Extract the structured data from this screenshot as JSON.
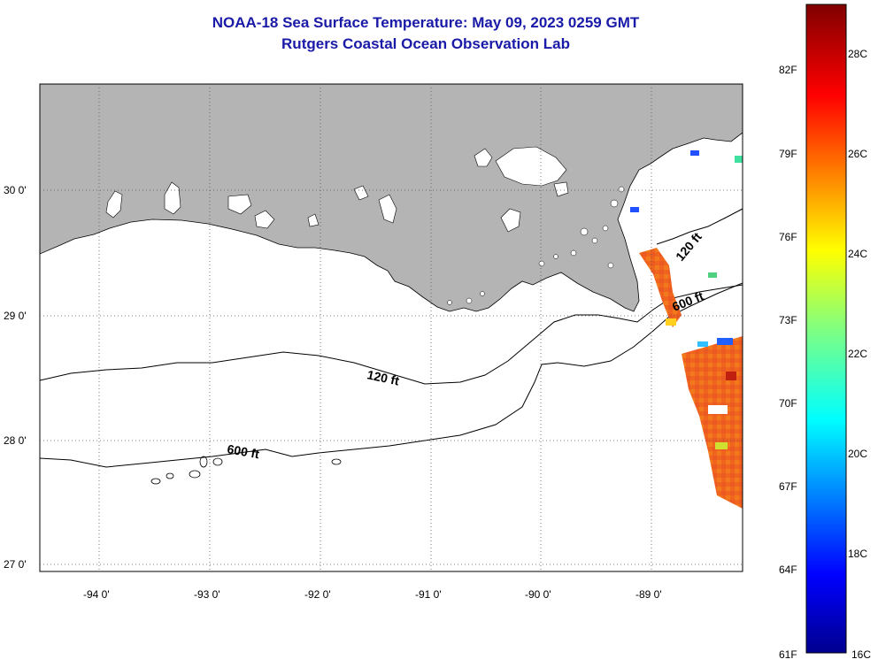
{
  "title_line1": "NOAA-18 Sea Surface Temperature:  May 09, 2023 0259 GMT",
  "title_line2": "Rutgers Coastal Ocean Observation Lab",
  "lat_labels": [
    "30 0'",
    "29 0'",
    "28 0'",
    "27 0'"
  ],
  "lon_labels": [
    "-94 0'",
    "-93 0'",
    "-92 0'",
    "-91 0'",
    "-90 0'",
    "-89 0'"
  ],
  "contour_labels": {
    "c120_a": "120 ft",
    "c600_a": "600 ft",
    "c120_b": "120 ft",
    "c600_b": "600 ft"
  },
  "colorbar": {
    "fahrenheit": [
      "82F",
      "79F",
      "76F",
      "73F",
      "70F",
      "67F",
      "64F",
      "61F"
    ],
    "celsius": [
      "28C",
      "26C",
      "24C",
      "22C",
      "20C",
      "18C",
      "16C"
    ]
  },
  "colors": {
    "land": "#b4b4b4",
    "title": "#1a1aa8",
    "sst_warm": "#f0641e"
  }
}
